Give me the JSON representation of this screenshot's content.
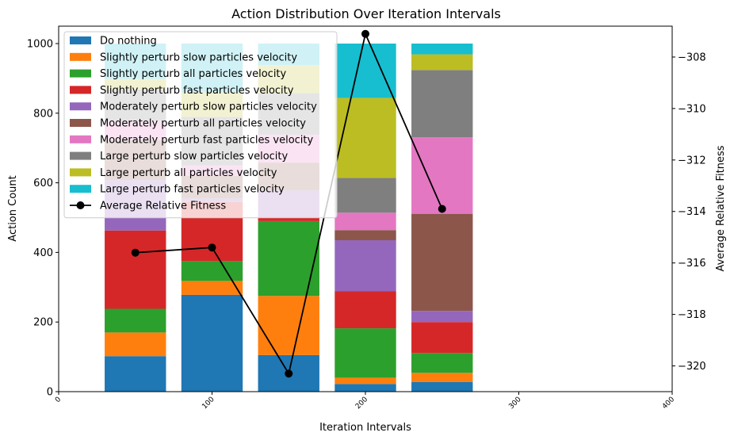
{
  "chart_data": {
    "type": "bar",
    "stacked": true,
    "title": "Action Distribution Over Iteration Intervals",
    "xlabel": "Iteration Intervals",
    "ylabel": "Action Count",
    "y2label": "Average Relative Fitness",
    "xlim": [
      0,
      400
    ],
    "ylim": [
      0,
      1050
    ],
    "y2lim": [
      -321,
      -306.8
    ],
    "xticks": [
      "0",
      "100",
      "200",
      "300",
      "400"
    ],
    "xtick_values": [
      0,
      100,
      200,
      300,
      400
    ],
    "yticks": [
      "0",
      "200",
      "400",
      "600",
      "800",
      "1000"
    ],
    "ytick_values": [
      0,
      200,
      400,
      600,
      800,
      1000
    ],
    "y2ticks": [
      "−308",
      "−310",
      "−312",
      "−314",
      "−316",
      "−318",
      "−320"
    ],
    "y2tick_values": [
      -308,
      -310,
      -312,
      -314,
      -316,
      -318,
      -320
    ],
    "x": [
      50,
      100,
      150,
      200,
      250
    ],
    "bar_width": 40,
    "legend_position": "upper-left",
    "grid": false,
    "series": [
      {
        "name": "Do nothing",
        "color": "#1f77b4",
        "values": [
          102,
          278,
          105,
          22,
          28
        ]
      },
      {
        "name": "Slightly perturb slow particles velocity",
        "color": "#ff7f0e",
        "values": [
          68,
          40,
          170,
          18,
          26
        ]
      },
      {
        "name": "Slightly perturb all particles velocity",
        "color": "#2ca02c",
        "values": [
          68,
          57,
          215,
          142,
          57
        ]
      },
      {
        "name": "Slightly perturb fast particles velocity",
        "color": "#d62728",
        "values": [
          225,
          170,
          10,
          107,
          89
        ]
      },
      {
        "name": "Moderately perturb slow particles velocity",
        "color": "#9467bd",
        "values": [
          145,
          10,
          78,
          146,
          32
        ]
      },
      {
        "name": "Moderately perturb all particles velocity",
        "color": "#8c564b",
        "values": [
          115,
          65,
          80,
          29,
          279
        ]
      },
      {
        "name": "Moderately perturb fast particles velocity",
        "color": "#e377c2",
        "values": [
          55,
          30,
          80,
          50,
          220
        ]
      },
      {
        "name": "Large perturb slow particles velocity",
        "color": "#7f7f7f",
        "values": [
          90,
          140,
          120,
          100,
          193
        ]
      },
      {
        "name": "Large perturb all particles velocity",
        "color": "#bcbd22",
        "values": [
          30,
          70,
          80,
          230,
          45
        ]
      },
      {
        "name": "Large perturb fast particles velocity",
        "color": "#17becf",
        "values": [
          102,
          140,
          62,
          156,
          31
        ]
      }
    ],
    "line_series": {
      "name": "Average Relative Fitness",
      "color": "#000000",
      "x": [
        50,
        100,
        150,
        200,
        250
      ],
      "values": [
        -315.6,
        -315.4,
        -320.3,
        -307.1,
        -313.9
      ]
    }
  }
}
